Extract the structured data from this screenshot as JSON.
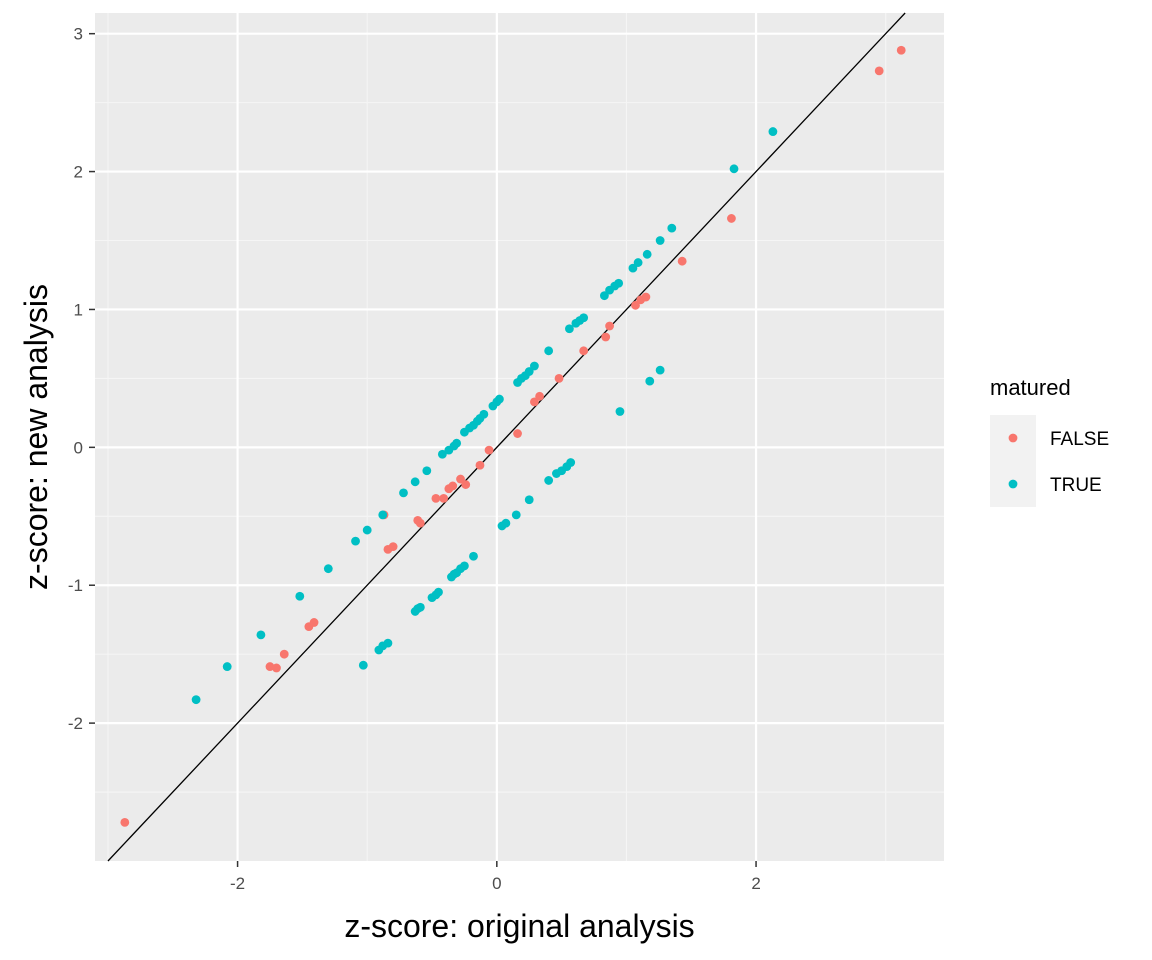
{
  "chart_data": {
    "type": "scatter",
    "title": "",
    "xlabel": "z-score: original analysis",
    "ylabel": "z-score: new analysis",
    "xlim": [
      -3.1,
      3.45
    ],
    "ylim": [
      -3.0,
      3.15
    ],
    "x_ticks": [
      -2,
      0,
      2
    ],
    "y_ticks": [
      -2,
      -1,
      0,
      1,
      2,
      3
    ],
    "grid": true,
    "reference_line": {
      "slope": 1,
      "intercept": 0,
      "color": "#000000"
    },
    "legend": {
      "title": "matured",
      "position": "right",
      "entries": [
        {
          "label": "FALSE",
          "color": "#F8766D"
        },
        {
          "label": "TRUE",
          "color": "#00BFC4"
        }
      ]
    },
    "series": [
      {
        "name": "FALSE",
        "color": "#F8766D",
        "points": [
          [
            -2.87,
            -2.72
          ],
          [
            -1.75,
            -1.59
          ],
          [
            -1.7,
            -1.6
          ],
          [
            -1.64,
            -1.5
          ],
          [
            -1.45,
            -1.3
          ],
          [
            -1.41,
            -1.27
          ],
          [
            -0.87,
            -0.49
          ],
          [
            -0.84,
            -0.74
          ],
          [
            -0.8,
            -0.72
          ],
          [
            -0.61,
            -0.53
          ],
          [
            -0.59,
            -0.55
          ],
          [
            -0.47,
            -0.37
          ],
          [
            -0.41,
            -0.37
          ],
          [
            -0.37,
            -0.3
          ],
          [
            -0.34,
            -0.28
          ],
          [
            -0.28,
            -0.23
          ],
          [
            -0.24,
            -0.27
          ],
          [
            -0.13,
            -0.13
          ],
          [
            -0.06,
            -0.02
          ],
          [
            0.16,
            0.1
          ],
          [
            0.29,
            0.33
          ],
          [
            0.33,
            0.37
          ],
          [
            0.48,
            0.5
          ],
          [
            0.67,
            0.7
          ],
          [
            0.84,
            0.8
          ],
          [
            0.87,
            0.88
          ],
          [
            1.07,
            1.03
          ],
          [
            1.11,
            1.07
          ],
          [
            1.15,
            1.09
          ],
          [
            1.43,
            1.35
          ],
          [
            1.81,
            1.66
          ],
          [
            2.95,
            2.73
          ],
          [
            3.12,
            2.88
          ]
        ]
      },
      {
        "name": "TRUE",
        "color": "#00BFC4",
        "points": [
          [
            -2.32,
            -1.83
          ],
          [
            -2.08,
            -1.59
          ],
          [
            -1.82,
            -1.36
          ],
          [
            -1.52,
            -1.08
          ],
          [
            -1.3,
            -0.88
          ],
          [
            -1.09,
            -0.68
          ],
          [
            -1.0,
            -0.6
          ],
          [
            -0.88,
            -0.49
          ],
          [
            -0.72,
            -0.33
          ],
          [
            -0.63,
            -0.25
          ],
          [
            -0.54,
            -0.17
          ],
          [
            -0.42,
            -0.05
          ],
          [
            -0.37,
            -0.02
          ],
          [
            -0.33,
            0.01
          ],
          [
            -0.31,
            0.03
          ],
          [
            -0.25,
            0.11
          ],
          [
            -0.21,
            0.14
          ],
          [
            -0.18,
            0.16
          ],
          [
            -0.15,
            0.19
          ],
          [
            -0.13,
            0.21
          ],
          [
            -0.1,
            0.24
          ],
          [
            -0.03,
            0.3
          ],
          [
            0.0,
            0.33
          ],
          [
            0.02,
            0.35
          ],
          [
            0.16,
            0.47
          ],
          [
            0.19,
            0.5
          ],
          [
            0.22,
            0.52
          ],
          [
            0.25,
            0.55
          ],
          [
            0.29,
            0.59
          ],
          [
            0.4,
            0.7
          ],
          [
            0.56,
            0.86
          ],
          [
            0.61,
            0.9
          ],
          [
            0.64,
            0.92
          ],
          [
            0.67,
            0.94
          ],
          [
            0.83,
            1.1
          ],
          [
            0.87,
            1.14
          ],
          [
            0.91,
            1.17
          ],
          [
            0.94,
            1.19
          ],
          [
            1.05,
            1.3
          ],
          [
            1.09,
            1.34
          ],
          [
            1.16,
            1.4
          ],
          [
            1.26,
            1.5
          ],
          [
            1.35,
            1.59
          ],
          [
            1.83,
            2.02
          ],
          [
            2.13,
            2.29
          ],
          [
            -1.03,
            -1.58
          ],
          [
            -0.91,
            -1.47
          ],
          [
            -0.88,
            -1.44
          ],
          [
            -0.84,
            -1.42
          ],
          [
            -0.63,
            -1.19
          ],
          [
            -0.61,
            -1.17
          ],
          [
            -0.59,
            -1.16
          ],
          [
            -0.5,
            -1.09
          ],
          [
            -0.47,
            -1.07
          ],
          [
            -0.45,
            -1.05
          ],
          [
            -0.35,
            -0.94
          ],
          [
            -0.33,
            -0.92
          ],
          [
            -0.31,
            -0.91
          ],
          [
            -0.28,
            -0.88
          ],
          [
            -0.25,
            -0.86
          ],
          [
            -0.18,
            -0.79
          ],
          [
            0.04,
            -0.57
          ],
          [
            0.07,
            -0.55
          ],
          [
            0.15,
            -0.49
          ],
          [
            0.25,
            -0.38
          ],
          [
            0.4,
            -0.24
          ],
          [
            0.46,
            -0.19
          ],
          [
            0.5,
            -0.17
          ],
          [
            0.54,
            -0.14
          ],
          [
            0.57,
            -0.11
          ],
          [
            0.95,
            0.26
          ],
          [
            1.18,
            0.48
          ],
          [
            1.26,
            0.56
          ]
        ]
      }
    ]
  }
}
